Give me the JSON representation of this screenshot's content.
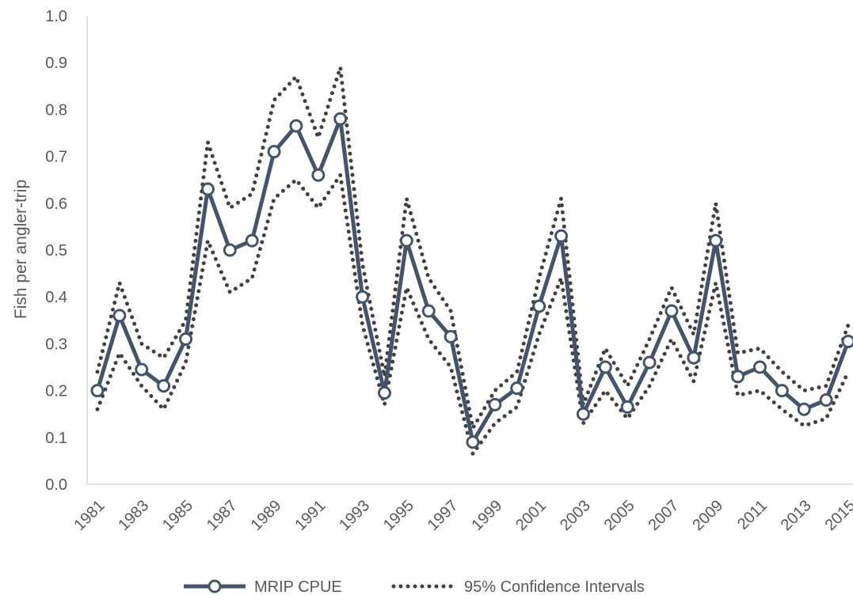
{
  "chart_data": {
    "type": "line",
    "title": "",
    "xlabel": "",
    "ylabel": "Fish per angler-trip",
    "ylim": [
      0,
      1.0
    ],
    "yticks": [
      "0.0",
      "0.1",
      "0.2",
      "0.3",
      "0.4",
      "0.5",
      "0.6",
      "0.7",
      "0.8",
      "0.9",
      "1.0"
    ],
    "x": [
      1981,
      1982,
      1983,
      1984,
      1985,
      1986,
      1987,
      1988,
      1989,
      1990,
      1991,
      1992,
      1993,
      1994,
      1995,
      1996,
      1997,
      1998,
      1999,
      2000,
      2001,
      2002,
      2003,
      2004,
      2005,
      2006,
      2007,
      2008,
      2009,
      2010,
      2011,
      2012,
      2013,
      2014,
      2015
    ],
    "xticks": [
      "1981",
      "1983",
      "1985",
      "1987",
      "1989",
      "1991",
      "1993",
      "1995",
      "1997",
      "1999",
      "2001",
      "2003",
      "2005",
      "2007",
      "2009",
      "2011",
      "2013",
      "2015"
    ],
    "series": [
      {
        "name": "MRIP CPUE",
        "color": "#44546A",
        "values": [
          0.2,
          0.36,
          0.245,
          0.21,
          0.31,
          0.63,
          0.5,
          0.52,
          0.71,
          0.765,
          0.66,
          0.78,
          0.4,
          0.195,
          0.52,
          0.37,
          0.315,
          0.09,
          0.17,
          0.205,
          0.38,
          0.53,
          0.15,
          0.25,
          0.165,
          0.26,
          0.37,
          0.27,
          0.52,
          0.23,
          0.25,
          0.2,
          0.16,
          0.18,
          0.305
        ]
      }
    ],
    "confidence_upper": [
      0.24,
      0.43,
      0.3,
      0.27,
      0.35,
      0.73,
      0.59,
      0.62,
      0.82,
      0.87,
      0.74,
      0.89,
      0.47,
      0.23,
      0.61,
      0.44,
      0.37,
      0.12,
      0.2,
      0.24,
      0.44,
      0.61,
      0.17,
      0.29,
      0.21,
      0.31,
      0.42,
      0.32,
      0.6,
      0.28,
      0.29,
      0.24,
      0.2,
      0.21,
      0.34
    ],
    "confidence_lower": [
      0.16,
      0.28,
      0.21,
      0.16,
      0.26,
      0.52,
      0.41,
      0.44,
      0.61,
      0.65,
      0.59,
      0.66,
      0.34,
      0.17,
      0.42,
      0.31,
      0.25,
      0.065,
      0.13,
      0.165,
      0.32,
      0.44,
      0.13,
      0.2,
      0.14,
      0.21,
      0.31,
      0.22,
      0.43,
      0.19,
      0.2,
      0.16,
      0.125,
      0.14,
      0.24
    ],
    "ci_legend_label": "95% Confidence Intervals",
    "ci_color": "#404040",
    "grid": false,
    "legend_position": "bottom"
  }
}
